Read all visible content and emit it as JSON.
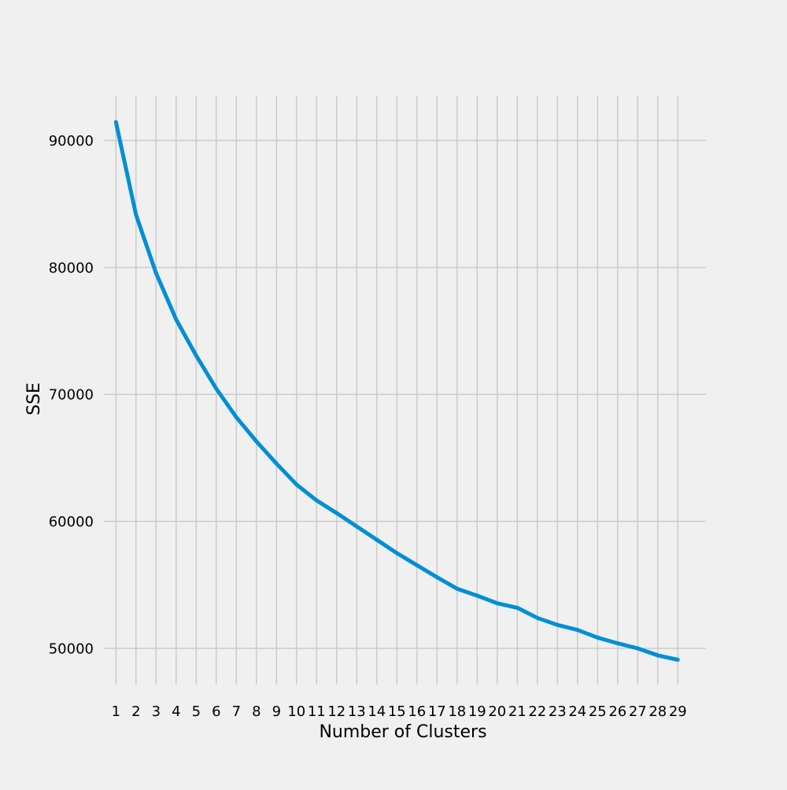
{
  "chart_data": {
    "type": "line",
    "title": "",
    "xlabel": "Number of Clusters",
    "ylabel": "SSE",
    "x": [
      1,
      2,
      3,
      4,
      5,
      6,
      7,
      8,
      9,
      10,
      11,
      12,
      13,
      14,
      15,
      16,
      17,
      18,
      19,
      20,
      21,
      22,
      23,
      24,
      25,
      26,
      27,
      28,
      29
    ],
    "series": [
      {
        "values": [
          91450,
          84150,
          79550,
          75900,
          73050,
          70450,
          68200,
          66300,
          64550,
          62900,
          61650,
          60650,
          59600,
          58550,
          57500,
          56550,
          55600,
          54700,
          54150,
          53550,
          53200,
          52400,
          51850,
          51450,
          50850,
          50400,
          50000,
          49450,
          49100
        ],
        "color": "#008fd5"
      }
    ],
    "x_ticks": [
      "1",
      "2",
      "3",
      "4",
      "5",
      "6",
      "7",
      "8",
      "9",
      "10",
      "11",
      "12",
      "13",
      "14",
      "15",
      "16",
      "17",
      "18",
      "19",
      "20",
      "21",
      "22",
      "23",
      "24",
      "25",
      "26",
      "27",
      "28",
      "29"
    ],
    "y_ticks": [
      "50000",
      "60000",
      "70000",
      "80000",
      "90000"
    ],
    "xlim": [
      0.4,
      30.4
    ],
    "ylim": [
      47150,
      93500
    ],
    "grid": true,
    "legend": "none",
    "colors": {
      "background": "#f0f0f0",
      "grid": "#cbcbcb",
      "line": "#008fd5"
    }
  }
}
